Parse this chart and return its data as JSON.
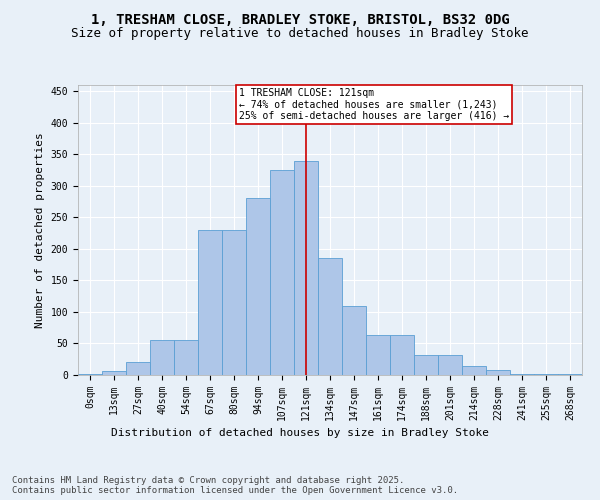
{
  "title_line1": "1, TRESHAM CLOSE, BRADLEY STOKE, BRISTOL, BS32 0DG",
  "title_line2": "Size of property relative to detached houses in Bradley Stoke",
  "xlabel": "Distribution of detached houses by size in Bradley Stoke",
  "ylabel": "Number of detached properties",
  "bar_labels": [
    "0sqm",
    "13sqm",
    "27sqm",
    "40sqm",
    "54sqm",
    "67sqm",
    "80sqm",
    "94sqm",
    "107sqm",
    "121sqm",
    "134sqm",
    "147sqm",
    "161sqm",
    "174sqm",
    "188sqm",
    "201sqm",
    "214sqm",
    "228sqm",
    "241sqm",
    "255sqm",
    "268sqm"
  ],
  "bar_values": [
    2,
    7,
    20,
    55,
    55,
    230,
    230,
    280,
    325,
    340,
    185,
    110,
    63,
    63,
    32,
    32,
    15,
    8,
    2,
    1,
    1
  ],
  "bar_color": "#aec6e8",
  "bar_edge_color": "#5a9fd4",
  "vline_x_idx": 9,
  "vline_color": "#cc0000",
  "annotation_title": "1 TRESHAM CLOSE: 121sqm",
  "annotation_line2": "← 74% of detached houses are smaller (1,243)",
  "annotation_line3": "25% of semi-detached houses are larger (416) →",
  "annotation_box_color": "#cc0000",
  "ylim": [
    0,
    460
  ],
  "yticks": [
    0,
    50,
    100,
    150,
    200,
    250,
    300,
    350,
    400,
    450
  ],
  "footer_line1": "Contains HM Land Registry data © Crown copyright and database right 2025.",
  "footer_line2": "Contains public sector information licensed under the Open Government Licence v3.0.",
  "bg_color": "#e8f0f8",
  "plot_bg_color": "#e8f0f8",
  "grid_color": "#ffffff",
  "title_fontsize": 10,
  "subtitle_fontsize": 9,
  "axis_label_fontsize": 8,
  "tick_fontsize": 7,
  "footer_fontsize": 6.5,
  "annotation_fontsize": 7
}
